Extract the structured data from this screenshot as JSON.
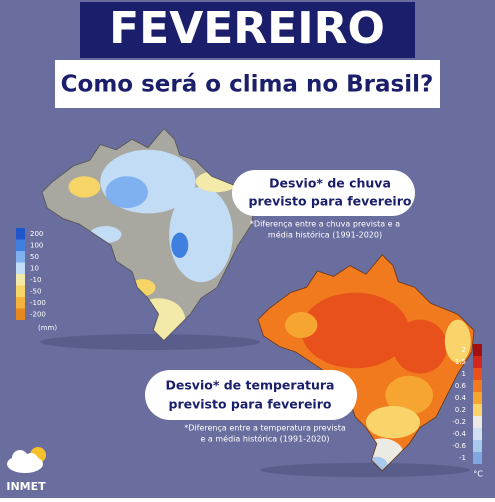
{
  "header": {
    "title": "FEVEREIRO",
    "subtitle": "Como será o clima no Brasil?"
  },
  "rain": {
    "title_lines": [
      "Desvio* de chuva",
      "previsto para fevereiro"
    ],
    "note_lines": [
      "*Diferença entre a chuva prevista e a",
      "média histórica (1991-2020)"
    ],
    "legend": {
      "unit": "(mm)",
      "items": [
        {
          "label": "200",
          "color": "#1f56c9"
        },
        {
          "label": "100",
          "color": "#3f7fe0"
        },
        {
          "label": "50",
          "color": "#7fb0ef"
        },
        {
          "label": "10",
          "color": "#c2dcf6"
        },
        {
          "label": "-10",
          "color": "#f3e9a8"
        },
        {
          "label": "-50",
          "color": "#f6d466"
        },
        {
          "label": "-100",
          "color": "#f3b23c"
        },
        {
          "label": "-200",
          "color": "#e9871f"
        }
      ]
    }
  },
  "temperature": {
    "title_lines": [
      "Desvio* de temperatura",
      "previsto para fevereiro"
    ],
    "note_lines": [
      "*Diferença entre a temperatura prevista",
      "e a média histórica (1991-2020)"
    ],
    "legend": {
      "unit": "°C",
      "items": [
        {
          "label": "2",
          "color": "#a3100f"
        },
        {
          "label": "1.5",
          "color": "#d2261a"
        },
        {
          "label": "1",
          "color": "#e8511c"
        },
        {
          "label": "0.6",
          "color": "#f17a1f"
        },
        {
          "label": "0.4",
          "color": "#f7a531"
        },
        {
          "label": "0.2",
          "color": "#f9d46a"
        },
        {
          "label": "-0.2",
          "color": "#ebebe4"
        },
        {
          "label": "-0.4",
          "color": "#cfe0f2"
        },
        {
          "label": "-0.6",
          "color": "#a8c8ec"
        },
        {
          "label": "-1",
          "color": "#7fa8e0"
        }
      ]
    }
  },
  "logo": {
    "text": "INMET"
  }
}
